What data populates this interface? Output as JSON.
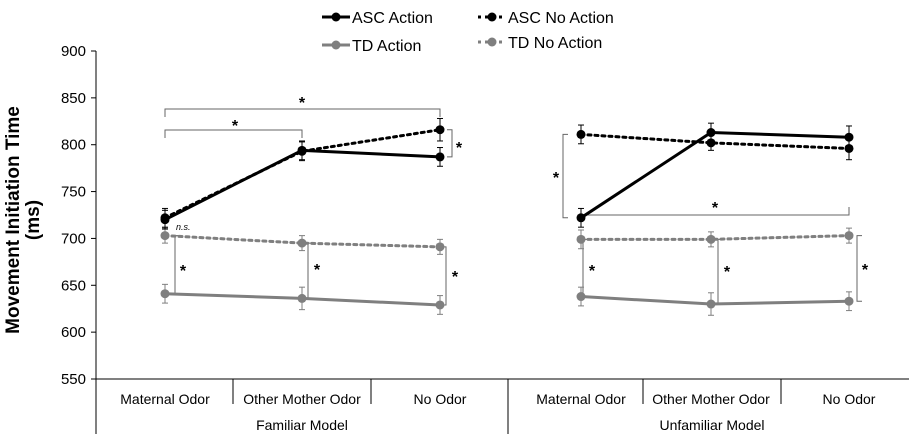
{
  "chart_data": {
    "type": "line",
    "ylabel": [
      "Movement Initiation Time",
      "(ms)"
    ],
    "ylim": [
      550,
      900
    ],
    "yticks": [
      550,
      600,
      650,
      700,
      750,
      800,
      850,
      900
    ],
    "groups": [
      {
        "label": "Familiar Model",
        "categories": [
          "Maternal Odor",
          "Other Mother Odor",
          "No Odor"
        ]
      },
      {
        "label": "Unfamiliar Model",
        "categories": [
          "Maternal Odor",
          "Other Mother Odor",
          "No Odor"
        ]
      }
    ],
    "series": [
      {
        "name": "ASC Action",
        "color": "#000000",
        "dashed": false,
        "values": [
          [
            720,
            794,
            787
          ],
          [
            722,
            813,
            808
          ]
        ],
        "errors": [
          [
            10,
            10,
            10
          ],
          [
            10,
            10,
            12
          ]
        ]
      },
      {
        "name": "ASC No Action",
        "color": "#000000",
        "dashed": true,
        "values": [
          [
            722,
            793,
            816
          ],
          [
            811,
            802,
            796
          ]
        ],
        "errors": [
          [
            10,
            10,
            12
          ],
          [
            10,
            8,
            12
          ]
        ]
      },
      {
        "name": "TD Action",
        "color": "#7f7f7f",
        "dashed": false,
        "values": [
          [
            641,
            636,
            629
          ],
          [
            638,
            630,
            633
          ]
        ],
        "errors": [
          [
            10,
            12,
            10
          ],
          [
            10,
            12,
            10
          ]
        ]
      },
      {
        "name": "TD No Action",
        "color": "#7f7f7f",
        "dashed": true,
        "values": [
          [
            703,
            695,
            691
          ],
          [
            699,
            699,
            703
          ]
        ],
        "errors": [
          [
            8,
            8,
            8
          ],
          [
            10,
            8,
            8
          ]
        ]
      }
    ],
    "annotations": [
      "*",
      "*",
      "*",
      "n.s.",
      "*",
      "*",
      "*",
      "*",
      "*",
      "*",
      "*",
      "*"
    ],
    "legend": "top"
  }
}
